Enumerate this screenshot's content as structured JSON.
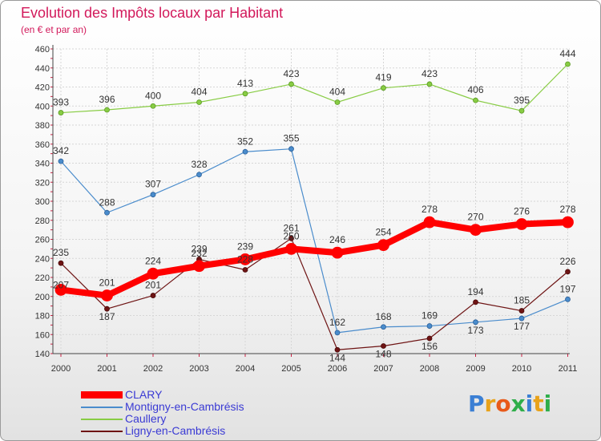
{
  "header": {
    "title": "Evolution des Impôts locaux par Habitant",
    "subtitle": "(en € et par an)"
  },
  "logo": {
    "text": "Proxiti"
  },
  "colors": {
    "CLARY": "#ff0000",
    "Montigny-en-Cambrésis": "#4a8ccc",
    "Caullery": "#88cc44",
    "Ligny-en-Cambrésis": "#6e1414",
    "title": "#d2185a",
    "legend_text": "#3a3ad4"
  },
  "chart_data": {
    "type": "line",
    "title": "Evolution des Impôts locaux par Habitant",
    "subtitle": "(en € et par an)",
    "xlabel": "",
    "ylabel": "",
    "ylim": [
      140,
      460
    ],
    "yticks": [
      140,
      160,
      180,
      200,
      220,
      240,
      260,
      280,
      300,
      320,
      340,
      360,
      380,
      400,
      420,
      440,
      460
    ],
    "grid": true,
    "legend_position": "bottom-left",
    "x": [
      "2000",
      "2001",
      "2002",
      "2003",
      "2004",
      "2005",
      "2006",
      "2007",
      "2008",
      "2009",
      "2010",
      "2011"
    ],
    "series": [
      {
        "name": "CLARY",
        "values": [
          207,
          201,
          224,
          232,
          239,
          250,
          246,
          254,
          278,
          270,
          276,
          278
        ]
      },
      {
        "name": "Montigny-en-Cambrésis",
        "values": [
          342,
          288,
          307,
          328,
          352,
          355,
          162,
          168,
          169,
          173,
          177,
          197
        ]
      },
      {
        "name": "Caullery",
        "values": [
          393,
          396,
          400,
          404,
          413,
          423,
          404,
          419,
          423,
          406,
          395,
          444
        ]
      },
      {
        "name": "Ligny-en-Cambrésis",
        "values": [
          235,
          187,
          201,
          239,
          228,
          261,
          144,
          148,
          156,
          194,
          185,
          226
        ]
      }
    ]
  }
}
